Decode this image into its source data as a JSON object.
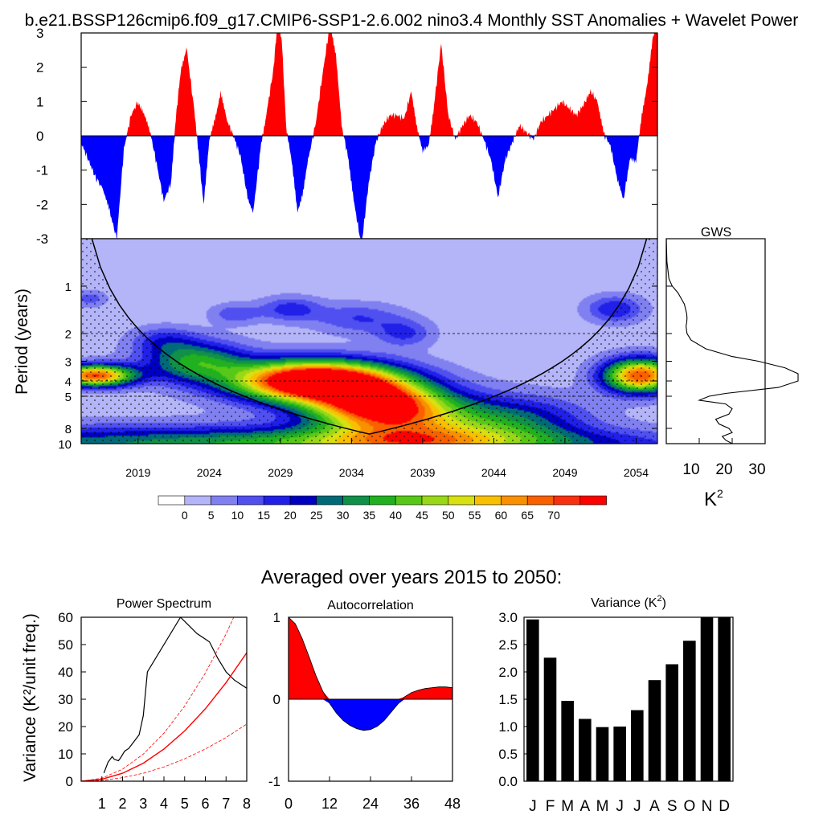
{
  "title": "b.e21.BSSP126cmip6.f09_g17.CMIP6-SSP1-2.6.002 nino3.4 Monthly SST Anomalies + Wavelet Power",
  "subtitle": "Averaged over years 2015 to 2050:",
  "colors": {
    "positive": "#ff0000",
    "negative": "#0000ff",
    "bar": "#000000",
    "fit_line": "#ff0000",
    "palette": [
      "#ffffff",
      "#b4b4f8",
      "#8080f0",
      "#5050f0",
      "#2020e8",
      "#0000c0",
      "#006a78",
      "#109048",
      "#20b020",
      "#58c818",
      "#98d818",
      "#d8e010",
      "#f8c000",
      "#f89000",
      "#f86000",
      "#f83010",
      "#ff0000"
    ]
  },
  "chart_data": [
    {
      "id": "sst_anomaly",
      "type": "area",
      "xlim": [
        2015,
        2055.5
      ],
      "ylim": [
        -3,
        3
      ],
      "yticks": [
        -3,
        -2,
        -1,
        0,
        1,
        2,
        3
      ],
      "ytick_labels": [
        "-3",
        "-2",
        "-1",
        "0",
        "1",
        "2",
        "3"
      ],
      "x": [
        2015,
        2015.5,
        2016,
        2016.6,
        2017,
        2017.5,
        2018,
        2018.5,
        2019,
        2019.4,
        2019.8,
        2020.3,
        2020.8,
        2021.3,
        2021.7,
        2022,
        2022.4,
        2022.9,
        2023.3,
        2023.6,
        2024,
        2024.4,
        2024.8,
        2025.2,
        2025.7,
        2026.2,
        2026.7,
        2027.1,
        2027.6,
        2028,
        2028.5,
        2028.8,
        2029.1,
        2029.4,
        2029.8,
        2030.2,
        2030.6,
        2031,
        2031.5,
        2032,
        2032.5,
        2032.9,
        2033.3,
        2033.8,
        2034.2,
        2034.7,
        2035.2,
        2035.7,
        2036.2,
        2036.7,
        2037.2,
        2037.7,
        2038.2,
        2038.6,
        2039,
        2039.4,
        2039.8,
        2040.3,
        2040.8,
        2041.3,
        2041.8,
        2042.3,
        2042.8,
        2043.3,
        2043.8,
        2044.3,
        2044.8,
        2045.3,
        2045.8,
        2046.3,
        2046.8,
        2047.3,
        2047.8,
        2048.3,
        2048.8,
        2049.3,
        2049.8,
        2050.3,
        2050.8,
        2051.3,
        2051.7,
        2052.2,
        2052.7,
        2053.1,
        2053.6,
        2054,
        2054.4,
        2054.8,
        2055.2,
        2055.5
      ],
      "values": [
        -0.2,
        -0.7,
        -1.2,
        -1.6,
        -2.2,
        -3.0,
        -0.4,
        0.6,
        1.0,
        0.6,
        0.2,
        -0.8,
        -1.9,
        -1.4,
        0.7,
        1.9,
        2.6,
        0.9,
        -0.7,
        -2.0,
        -0.2,
        0.5,
        1.3,
        0.5,
        0.0,
        -0.6,
        -1.8,
        -2.2,
        -0.4,
        0.6,
        1.9,
        3.3,
        2.8,
        0.3,
        -0.8,
        -2.2,
        -1.6,
        -0.6,
        0.4,
        1.9,
        3.3,
        2.4,
        0.3,
        -0.7,
        -2.0,
        -3.2,
        -1.4,
        -0.2,
        0.3,
        0.6,
        0.6,
        0.5,
        1.3,
        0.3,
        -0.5,
        -0.3,
        0.9,
        2.7,
        0.6,
        -0.1,
        0.3,
        0.6,
        0.4,
        -0.1,
        -0.7,
        -1.8,
        -0.7,
        -0.2,
        0.3,
        0.1,
        -0.1,
        0.4,
        0.6,
        0.8,
        1.0,
        0.8,
        0.6,
        0.9,
        1.3,
        1.0,
        0.1,
        -0.3,
        -1.3,
        -1.9,
        -0.6,
        -0.8,
        0.6,
        1.6,
        2.9,
        3.3
      ]
    },
    {
      "id": "wavelet_power",
      "type": "heatmap",
      "ylabel": "Period (years)",
      "xlim": [
        2015,
        2055.5
      ],
      "ylim": [
        0.5,
        10
      ],
      "xticks": [
        2019,
        2024,
        2029,
        2034,
        2039,
        2044,
        2049,
        2054
      ],
      "yticks": [
        1,
        2,
        3,
        4,
        5,
        8,
        10
      ],
      "ytick_labels": [
        "1",
        "2",
        "3",
        "4",
        "5",
        "8",
        "10"
      ],
      "dashed_periods": [
        2,
        4,
        5
      ],
      "levels": [
        0,
        5,
        10,
        15,
        20,
        25,
        30,
        35,
        40,
        45,
        50,
        55,
        60,
        65,
        70
      ],
      "cone_of_influence": true,
      "blobs": [
        {
          "x": 2031.5,
          "period": 4.0,
          "x_width": 4.0,
          "p_width": 0.3,
          "peak": 95
        },
        {
          "x": 2035.8,
          "period": 5.6,
          "x_width": 3.2,
          "p_width": 0.32,
          "peak": 60
        },
        {
          "x": 2038.5,
          "period": 8.0,
          "x_width": 4.5,
          "p_width": 0.45,
          "peak": 38
        },
        {
          "x": 2023.0,
          "period": 3.0,
          "x_width": 2.5,
          "p_width": 0.3,
          "peak": 33
        },
        {
          "x": 2016.0,
          "period": 3.7,
          "x_width": 1.9,
          "p_width": 0.16,
          "peak": 68
        },
        {
          "x": 2054.3,
          "period": 3.7,
          "x_width": 1.8,
          "p_width": 0.25,
          "peak": 68
        },
        {
          "x": 2020.0,
          "period": 10.0,
          "x_width": 18.0,
          "p_width": 0.28,
          "peak": 24
        },
        {
          "x": 2040.0,
          "period": 10.0,
          "x_width": 12.0,
          "p_width": 0.22,
          "peak": 22
        },
        {
          "x": 2046.0,
          "period": 7.0,
          "x_width": 3.5,
          "p_width": 0.35,
          "peak": 18
        },
        {
          "x": 2052.5,
          "period": 1.4,
          "x_width": 1.4,
          "p_width": 0.2,
          "peak": 18
        },
        {
          "x": 2025.8,
          "period": 1.5,
          "x_width": 1.2,
          "p_width": 0.15,
          "peak": 12
        },
        {
          "x": 2029.7,
          "period": 1.4,
          "x_width": 1.5,
          "p_width": 0.18,
          "peak": 16
        },
        {
          "x": 2034.5,
          "period": 1.6,
          "x_width": 2.2,
          "p_width": 0.22,
          "peak": 13
        },
        {
          "x": 2037.7,
          "period": 2.0,
          "x_width": 1.4,
          "p_width": 0.2,
          "peak": 14
        },
        {
          "x": 2020.8,
          "period": 2.2,
          "x_width": 1.6,
          "p_width": 0.2,
          "peak": 13
        },
        {
          "x": 2015.6,
          "period": 1.2,
          "x_width": 0.8,
          "p_width": 0.12,
          "peak": 11
        }
      ]
    },
    {
      "id": "global_wavelet_spectrum",
      "type": "line",
      "title": "GWS",
      "xlabel": "K",
      "xlabel_superscript": "2",
      "xlim": [
        0,
        30
      ],
      "xticks": [
        10,
        20,
        30
      ],
      "period": [
        0.5,
        0.7,
        0.9,
        1.0,
        1.1,
        1.3,
        1.5,
        1.6,
        1.7,
        1.8,
        2.0,
        2.2,
        2.5,
        2.8,
        3.0,
        3.3,
        3.6,
        4.0,
        4.4,
        4.8,
        5.0,
        5.3,
        5.6,
        6.0,
        6.5,
        7.0,
        7.5,
        8.0,
        8.5,
        9.0,
        9.5,
        10.0
      ],
      "power": [
        0,
        0.2,
        0.8,
        1.8,
        3.5,
        5.5,
        6.2,
        6.3,
        6.2,
        6.0,
        6.3,
        7.5,
        12.0,
        20.0,
        28.0,
        36.0,
        40.0,
        40.0,
        34.0,
        18.0,
        13.0,
        10.0,
        18.0,
        20.0,
        19.0,
        15.0,
        16.0,
        19.0,
        20.0,
        17.0,
        18.0,
        20.0
      ]
    },
    {
      "id": "power_spectrum",
      "type": "line",
      "title": "Power Spectrum",
      "ylabel": "Variance (K²/unit freq.)",
      "xlim": [
        0,
        8
      ],
      "ylim": [
        0,
        60
      ],
      "xticks": [
        1,
        2,
        3,
        4,
        5,
        6,
        7,
        8
      ],
      "yticks": [
        0,
        10,
        20,
        30,
        40,
        50,
        60
      ],
      "series": [
        {
          "name": "spectrum",
          "x": [
            1.1,
            1.3,
            1.5,
            1.6,
            1.8,
            1.9,
            2.1,
            2.3,
            2.5,
            2.8,
            3.0,
            3.2,
            4.8,
            5.2,
            5.6,
            6.2,
            6.6,
            7.0,
            7.4,
            8.0
          ],
          "y": [
            3,
            7,
            9,
            8,
            7.5,
            8.5,
            11,
            12,
            14,
            17,
            24,
            40,
            60,
            57,
            54,
            51,
            45,
            40,
            37,
            34
          ]
        },
        {
          "name": "red_noise_fit",
          "x": [
            0,
            1,
            2,
            3,
            4,
            5,
            6,
            7,
            8
          ],
          "y": [
            0,
            0.7,
            2.9,
            6.6,
            11.8,
            18.4,
            26.5,
            36.1,
            47.0
          ]
        },
        {
          "name": "upper_confidence",
          "x": [
            0,
            1,
            2,
            3,
            4,
            5,
            6,
            7,
            8
          ],
          "y": [
            0,
            1.1,
            4.4,
            9.9,
            17.6,
            27.5,
            39.6,
            53.9,
            70.4
          ]
        },
        {
          "name": "lower_confidence",
          "x": [
            0,
            1,
            2,
            3,
            4,
            5,
            6,
            7,
            8
          ],
          "y": [
            0,
            0.3,
            1.3,
            2.9,
            5.2,
            8.2,
            11.8,
            16.0,
            20.9
          ]
        }
      ]
    },
    {
      "id": "autocorrelation",
      "type": "area",
      "title": "Autocorrelation",
      "xlim": [
        0,
        48
      ],
      "ylim": [
        -1,
        1
      ],
      "xticks": [
        0,
        12,
        24,
        36,
        48
      ],
      "yticks": [
        -1,
        0,
        1
      ],
      "lags": [
        0,
        2,
        4,
        6,
        8,
        10,
        12,
        14,
        16,
        18,
        20,
        22,
        24,
        26,
        28,
        30,
        32,
        34,
        36,
        38,
        40,
        42,
        44,
        46,
        48
      ],
      "values": [
        1.0,
        0.92,
        0.74,
        0.52,
        0.29,
        0.1,
        -0.05,
        -0.17,
        -0.26,
        -0.32,
        -0.36,
        -0.38,
        -0.37,
        -0.33,
        -0.26,
        -0.16,
        -0.06,
        0.03,
        0.08,
        0.11,
        0.13,
        0.14,
        0.15,
        0.15,
        0.14
      ]
    },
    {
      "id": "monthly_variance",
      "type": "bar",
      "title": "Variance (K",
      "title_superscript": "2",
      "title_suffix": ")",
      "ylim": [
        0,
        3
      ],
      "yticks": [
        0,
        0.5,
        1,
        1.5,
        2,
        2.5,
        3
      ],
      "ytick_labels": [
        "0.0",
        "0.5",
        "1.0",
        "1.5",
        "2.0",
        "2.5",
        "3.0"
      ],
      "categories": [
        "J",
        "F",
        "M",
        "A",
        "M",
        "J",
        "J",
        "A",
        "S",
        "O",
        "N",
        "D"
      ],
      "values": [
        2.96,
        2.26,
        1.47,
        1.14,
        0.99,
        1.0,
        1.3,
        1.85,
        2.14,
        2.57,
        3.0,
        3.0
      ]
    }
  ]
}
